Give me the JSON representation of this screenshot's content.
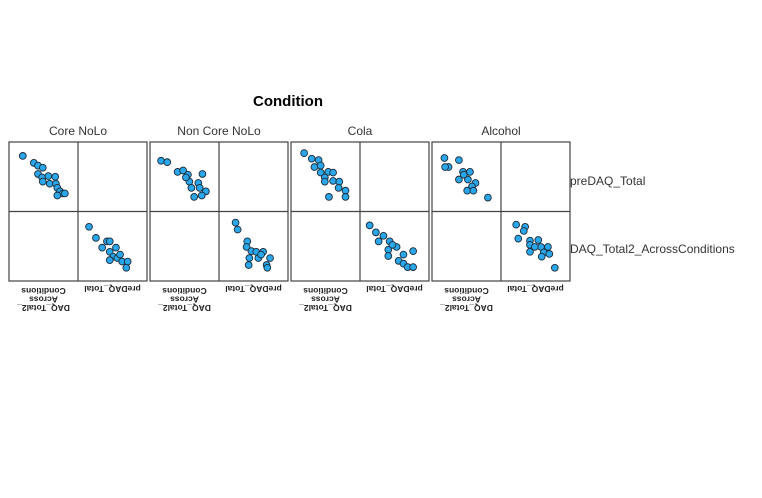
{
  "chart_data": {
    "type": "scatter",
    "subtype": "scatterplot-matrix-paneled",
    "title": "Condition",
    "variables": [
      "preDAQ_Total",
      "DAQ_Total2_AcrossConditions"
    ],
    "axis_labels": {
      "daq": [
        "DAQ_Total2_",
        "Across",
        "Conditions"
      ],
      "pre": "preDAQ_Total"
    },
    "value_scale": "relative (0-100 of each panel's axis range; no tick values shown)",
    "panels": [
      {
        "name": "Core NoLo",
        "upper": [
          [
            20,
            80
          ],
          [
            36,
            70
          ],
          [
            42,
            66
          ],
          [
            49,
            63
          ],
          [
            42,
            54
          ],
          [
            48,
            49
          ],
          [
            57,
            51
          ],
          [
            67,
            50
          ],
          [
            49,
            43
          ],
          [
            59,
            40
          ],
          [
            68,
            40
          ],
          [
            70,
            34
          ],
          [
            74,
            29
          ],
          [
            78,
            26
          ],
          [
            70,
            23
          ],
          [
            81,
            26
          ]
        ],
        "lower": [
          [
            16,
            78
          ],
          [
            26,
            62
          ],
          [
            35,
            48
          ],
          [
            42,
            57
          ],
          [
            46,
            57
          ],
          [
            55,
            48
          ],
          [
            46,
            42
          ],
          [
            51,
            35
          ],
          [
            57,
            33
          ],
          [
            61,
            38
          ],
          [
            64,
            28
          ],
          [
            72,
            28
          ],
          [
            70,
            19
          ],
          [
            46,
            30
          ]
        ]
      },
      {
        "name": "Non Core NoLo",
        "upper": [
          [
            16,
            73
          ],
          [
            25,
            71
          ],
          [
            40,
            57
          ],
          [
            48,
            59
          ],
          [
            55,
            53
          ],
          [
            76,
            54
          ],
          [
            57,
            43
          ],
          [
            70,
            41
          ],
          [
            60,
            34
          ],
          [
            72,
            34
          ],
          [
            81,
            29
          ],
          [
            64,
            21
          ],
          [
            75,
            23
          ],
          [
            52,
            49
          ]
        ],
        "lower": [
          [
            24,
            84
          ],
          [
            27,
            74
          ],
          [
            41,
            57
          ],
          [
            40,
            49
          ],
          [
            47,
            43
          ],
          [
            54,
            42
          ],
          [
            64,
            42
          ],
          [
            44,
            33
          ],
          [
            57,
            33
          ],
          [
            74,
            33
          ],
          [
            43,
            23
          ],
          [
            69,
            23
          ],
          [
            70,
            19
          ],
          [
            61,
            38
          ]
        ]
      },
      {
        "name": "Cola",
        "upper": [
          [
            19,
            84
          ],
          [
            30,
            76
          ],
          [
            40,
            74
          ],
          [
            34,
            64
          ],
          [
            43,
            66
          ],
          [
            43,
            56
          ],
          [
            54,
            57
          ],
          [
            61,
            56
          ],
          [
            49,
            49
          ],
          [
            61,
            44
          ],
          [
            70,
            43
          ],
          [
            69,
            34
          ],
          [
            79,
            30
          ],
          [
            79,
            21
          ],
          [
            55,
            21
          ],
          [
            49,
            43
          ]
        ],
        "lower": [
          [
            14,
            80
          ],
          [
            23,
            70
          ],
          [
            34,
            65
          ],
          [
            27,
            57
          ],
          [
            43,
            57
          ],
          [
            53,
            49
          ],
          [
            41,
            45
          ],
          [
            63,
            38
          ],
          [
            41,
            36
          ],
          [
            56,
            29
          ],
          [
            77,
            43
          ],
          [
            63,
            25
          ],
          [
            69,
            20
          ],
          [
            77,
            20
          ],
          [
            47,
            52
          ]
        ]
      },
      {
        "name": "Alcohol",
        "upper": [
          [
            18,
            77
          ],
          [
            39,
            74
          ],
          [
            24,
            64
          ],
          [
            19,
            64
          ],
          [
            45,
            57
          ],
          [
            55,
            57
          ],
          [
            39,
            46
          ],
          [
            52,
            46
          ],
          [
            63,
            41
          ],
          [
            58,
            36
          ],
          [
            51,
            30
          ],
          [
            60,
            30
          ],
          [
            81,
            20
          ],
          [
            46,
            53
          ]
        ],
        "lower": [
          [
            22,
            81
          ],
          [
            35,
            78
          ],
          [
            33,
            72
          ],
          [
            25,
            61
          ],
          [
            42,
            58
          ],
          [
            54,
            59
          ],
          [
            42,
            52
          ],
          [
            58,
            49
          ],
          [
            68,
            49
          ],
          [
            42,
            42
          ],
          [
            62,
            41
          ],
          [
            70,
            39
          ],
          [
            59,
            35
          ],
          [
            78,
            19
          ],
          [
            49,
            49
          ]
        ]
      }
    ],
    "colors": {
      "point": "#2aa6ea",
      "outline": "#1b2b38",
      "frame": "#444444"
    }
  }
}
